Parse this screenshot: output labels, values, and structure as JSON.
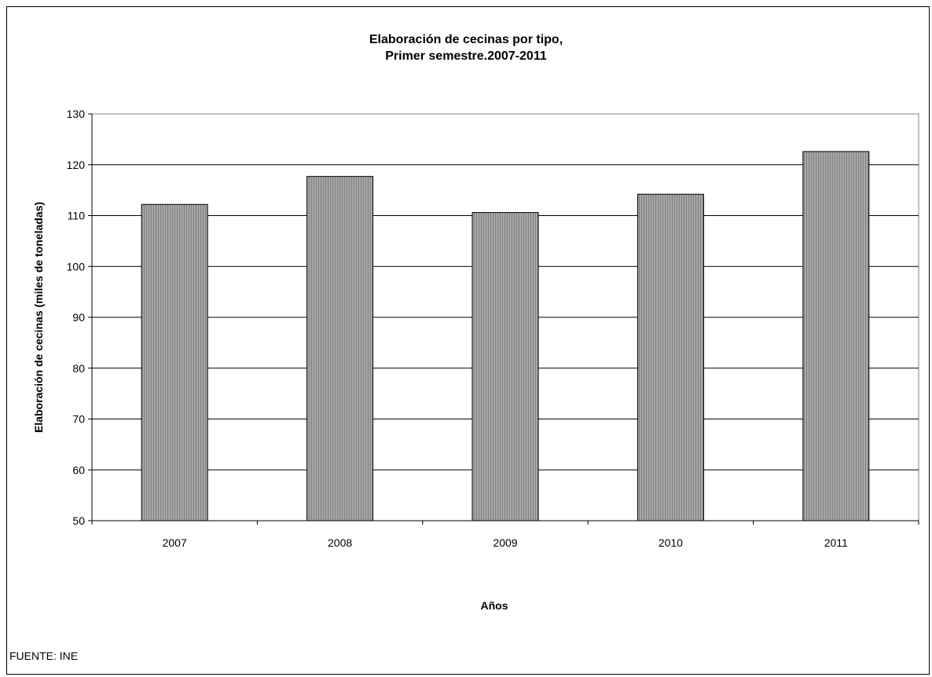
{
  "chart_data": {
    "type": "bar",
    "title": "Elaboración de cecinas por tipo,",
    "subtitle": "Primer semestre.2007-2011",
    "categories": [
      "2007",
      "2008",
      "2009",
      "2010",
      "2011"
    ],
    "values": [
      112.2,
      117.7,
      110.6,
      114.2,
      122.6
    ],
    "xlabel": "Años",
    "ylabel": "Elaboración de cecinas (miles de toneladas)",
    "ylim": [
      50,
      130
    ],
    "yticks": [
      "50",
      "60",
      "70",
      "80",
      "90",
      "100",
      "110",
      "120",
      "130"
    ],
    "grid": true,
    "legend": "none",
    "bar_color": "#999999"
  },
  "source_note": "FUENTE: INE"
}
